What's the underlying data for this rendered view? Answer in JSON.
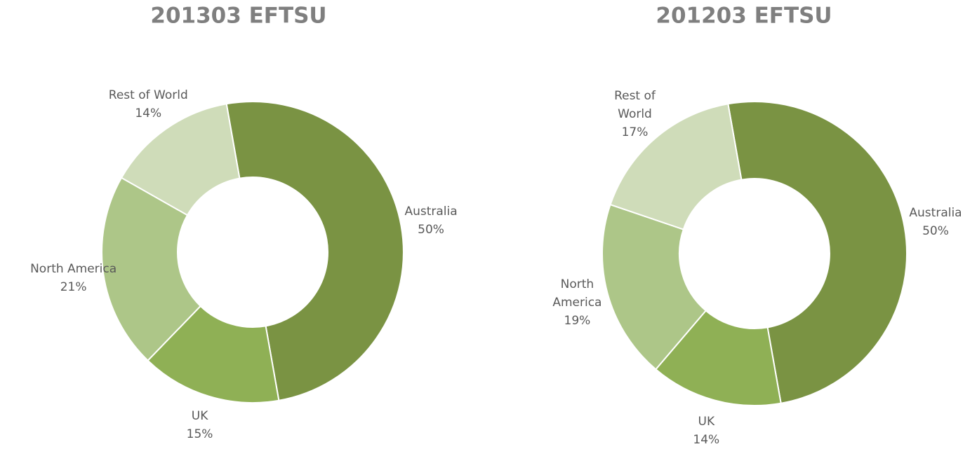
{
  "chart_data": [
    {
      "type": "donut",
      "title": "201303 EFTSU",
      "categories": [
        "Australia",
        "UK",
        "North America",
        "Rest of World"
      ],
      "values": [
        50,
        15,
        21,
        14
      ],
      "value_labels": [
        "50%",
        "15%",
        "21%",
        "14%"
      ],
      "colors": [
        "#7a9343",
        "#8fb055",
        "#adc688",
        "#cfdcb9"
      ]
    },
    {
      "type": "donut",
      "title": "201203 EFTSU",
      "categories": [
        "Australia",
        "UK",
        "North America",
        "Rest of World"
      ],
      "values": [
        50,
        14,
        19,
        17
      ],
      "value_labels": [
        "50%",
        "14%",
        "19%",
        "17%"
      ],
      "colors": [
        "#7a9343",
        "#8fb055",
        "#adc688",
        "#cfdcb9"
      ]
    }
  ]
}
